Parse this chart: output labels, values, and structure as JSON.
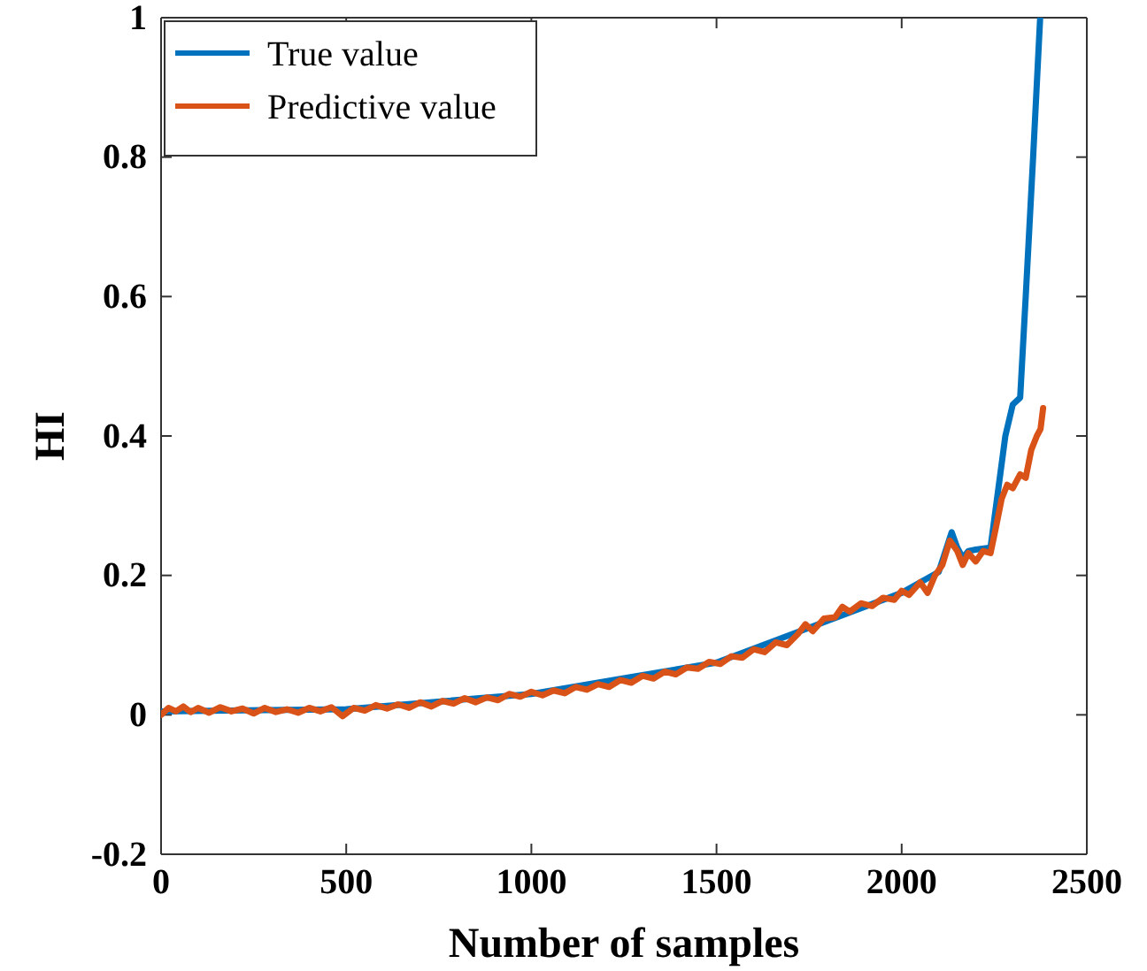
{
  "chart_data": {
    "type": "line",
    "xlabel": "Number of samples",
    "ylabel": "HI",
    "xlim": [
      0,
      2500
    ],
    "xticks": [
      0,
      500,
      1000,
      1500,
      2000,
      2500
    ],
    "ylim": [
      -0.2,
      1
    ],
    "yticks": [
      -0.2,
      0,
      0.2,
      0.4,
      0.6,
      0.8,
      1
    ],
    "legend": "top left",
    "grid": false,
    "line_style": "solid",
    "marker": "none",
    "series": [
      {
        "name": "True value",
        "color": "#0072bd",
        "x": [
          0,
          500,
          1000,
          1500,
          1800,
          2000,
          2100,
          2135,
          2150,
          2165,
          2180,
          2200,
          2240,
          2260,
          2280,
          2300,
          2320,
          2335,
          2355,
          2374
        ],
        "values": [
          0.005,
          0.008,
          0.03,
          0.075,
          0.135,
          0.175,
          0.205,
          0.262,
          0.24,
          0.225,
          0.235,
          0.237,
          0.24,
          0.32,
          0.4,
          0.445,
          0.455,
          0.6,
          0.8,
          1.0
        ]
      },
      {
        "name": "Predictive value",
        "color": "#d95319",
        "x": [
          0,
          20,
          40,
          60,
          80,
          100,
          130,
          160,
          190,
          220,
          250,
          280,
          310,
          340,
          370,
          400,
          430,
          460,
          490,
          520,
          550,
          580,
          610,
          640,
          670,
          700,
          730,
          760,
          790,
          820,
          850,
          880,
          910,
          940,
          970,
          1000,
          1030,
          1060,
          1090,
          1120,
          1150,
          1180,
          1210,
          1240,
          1270,
          1300,
          1330,
          1360,
          1390,
          1420,
          1450,
          1480,
          1510,
          1540,
          1570,
          1600,
          1630,
          1660,
          1690,
          1720,
          1740,
          1760,
          1790,
          1820,
          1840,
          1860,
          1890,
          1920,
          1950,
          1980,
          2000,
          2020,
          2050,
          2070,
          2090,
          2110,
          2130,
          2150,
          2165,
          2180,
          2200,
          2220,
          2240,
          2255,
          2270,
          2285,
          2300,
          2320,
          2335,
          2350,
          2365,
          2375,
          2382
        ],
        "values": [
          0.0,
          0.01,
          0.005,
          0.012,
          0.004,
          0.01,
          0.003,
          0.011,
          0.005,
          0.009,
          0.002,
          0.01,
          0.004,
          0.008,
          0.003,
          0.01,
          0.005,
          0.011,
          -0.002,
          0.01,
          0.006,
          0.014,
          0.009,
          0.015,
          0.01,
          0.018,
          0.012,
          0.02,
          0.016,
          0.024,
          0.018,
          0.025,
          0.021,
          0.03,
          0.026,
          0.033,
          0.028,
          0.035,
          0.031,
          0.04,
          0.036,
          0.044,
          0.04,
          0.05,
          0.046,
          0.056,
          0.052,
          0.062,
          0.058,
          0.068,
          0.066,
          0.076,
          0.073,
          0.084,
          0.082,
          0.094,
          0.09,
          0.104,
          0.1,
          0.116,
          0.13,
          0.12,
          0.138,
          0.14,
          0.155,
          0.148,
          0.16,
          0.156,
          0.168,
          0.165,
          0.178,
          0.172,
          0.19,
          0.175,
          0.2,
          0.215,
          0.25,
          0.235,
          0.215,
          0.232,
          0.22,
          0.235,
          0.232,
          0.27,
          0.31,
          0.33,
          0.325,
          0.345,
          0.34,
          0.38,
          0.4,
          0.41,
          0.44
        ]
      }
    ]
  }
}
